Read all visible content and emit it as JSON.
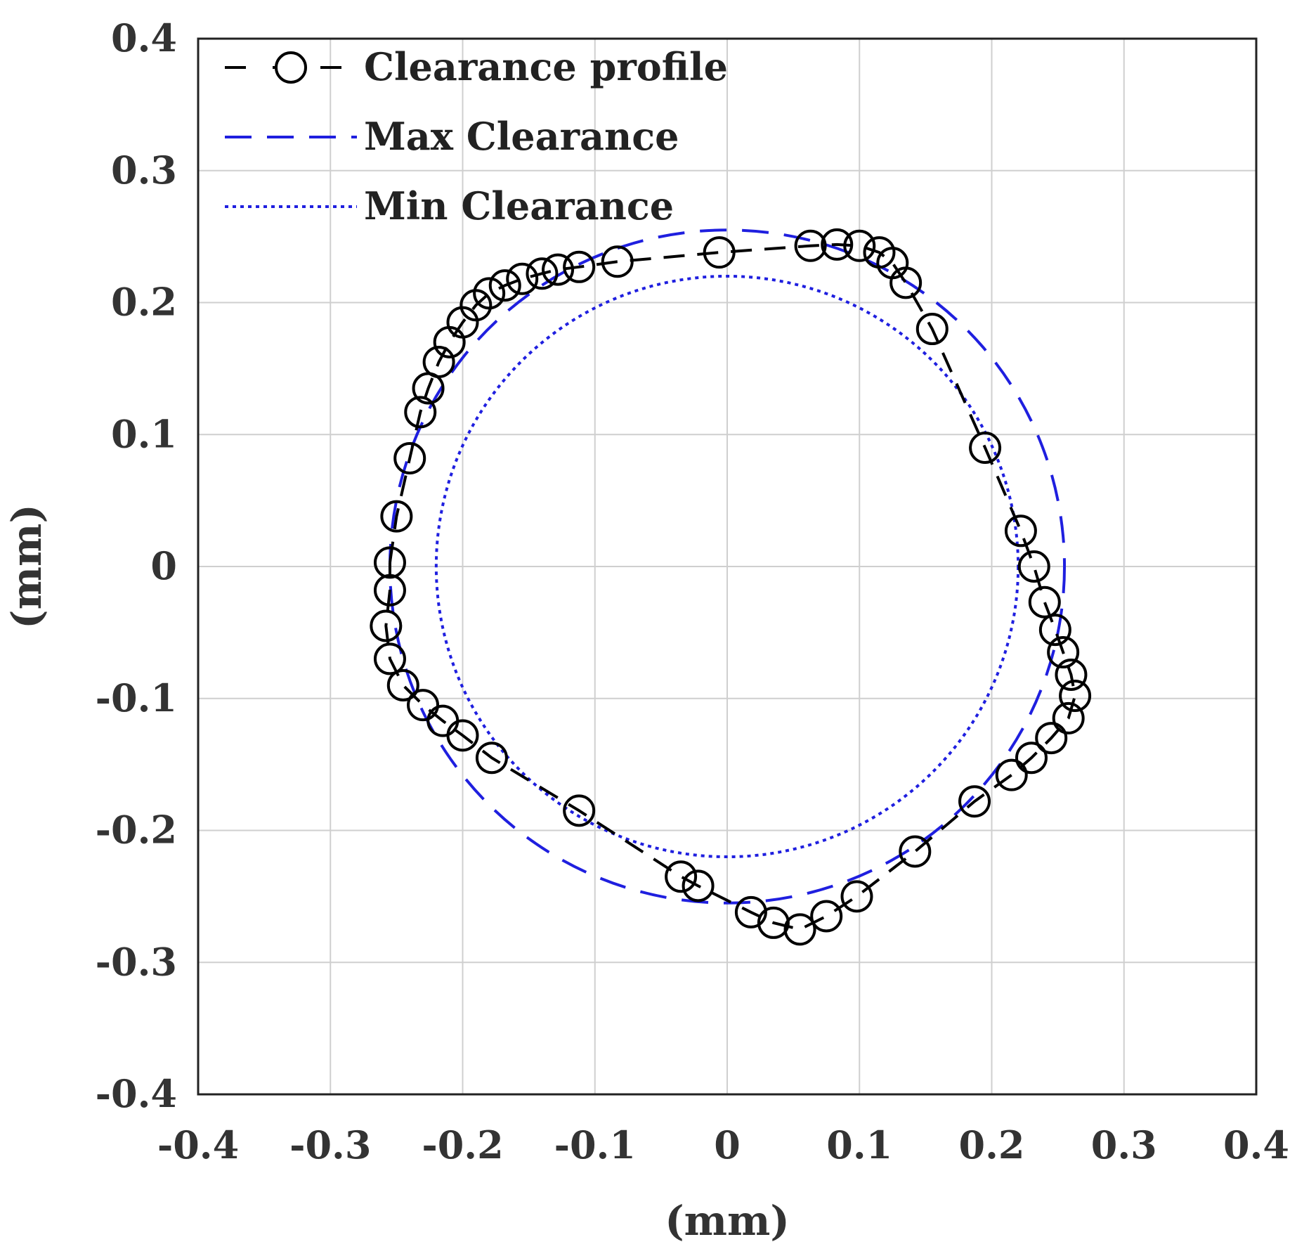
{
  "chart_data": {
    "type": "line",
    "title": "",
    "xlabel": "(mm)",
    "ylabel": "(mm)",
    "xlim": [
      -0.4,
      0.4
    ],
    "ylim": [
      -0.4,
      0.4
    ],
    "xticks": [
      "-0.4",
      "-0.3",
      "-0.2",
      "-0.1",
      "0",
      "0.1",
      "0.2",
      "0.3",
      "0.4"
    ],
    "yticks": [
      "-0.4",
      "-0.3",
      "-0.2",
      "-0.1",
      "0",
      "0.1",
      "0.2",
      "0.3",
      "0.4"
    ],
    "xtick_values": [
      -0.4,
      -0.3,
      -0.2,
      -0.1,
      0,
      0.1,
      0.2,
      0.3,
      0.4
    ],
    "ytick_values": [
      -0.4,
      -0.3,
      -0.2,
      -0.1,
      0,
      0.1,
      0.2,
      0.3,
      0.4
    ],
    "grid": true,
    "legend_position": "top-left",
    "series": [
      {
        "name": "Clearance profile",
        "style": "dashed-circle-markers",
        "color": "#000000",
        "points": [
          [
            -0.255,
            0.003
          ],
          [
            -0.25,
            0.038
          ],
          [
            -0.24,
            0.082
          ],
          [
            -0.232,
            0.117
          ],
          [
            -0.226,
            0.135
          ],
          [
            -0.218,
            0.155
          ],
          [
            -0.21,
            0.17
          ],
          [
            -0.2,
            0.185
          ],
          [
            -0.19,
            0.198
          ],
          [
            -0.18,
            0.207
          ],
          [
            -0.168,
            0.213
          ],
          [
            -0.155,
            0.218
          ],
          [
            -0.14,
            0.222
          ],
          [
            -0.128,
            0.225
          ],
          [
            -0.112,
            0.227
          ],
          [
            -0.083,
            0.231
          ],
          [
            -0.006,
            0.238
          ],
          [
            0.063,
            0.243
          ],
          [
            0.083,
            0.244
          ],
          [
            0.1,
            0.243
          ],
          [
            0.115,
            0.238
          ],
          [
            0.125,
            0.23
          ],
          [
            0.135,
            0.215
          ],
          [
            0.155,
            0.18
          ],
          [
            0.195,
            0.09
          ],
          [
            0.222,
            0.027
          ],
          [
            0.232,
            0.0
          ],
          [
            0.24,
            -0.027
          ],
          [
            0.248,
            -0.048
          ],
          [
            0.254,
            -0.065
          ],
          [
            0.26,
            -0.082
          ],
          [
            0.263,
            -0.098
          ],
          [
            0.258,
            -0.115
          ],
          [
            0.245,
            -0.13
          ],
          [
            0.23,
            -0.145
          ],
          [
            0.215,
            -0.158
          ],
          [
            0.187,
            -0.178
          ],
          [
            0.142,
            -0.216
          ],
          [
            0.098,
            -0.25
          ],
          [
            0.075,
            -0.265
          ],
          [
            0.055,
            -0.275
          ],
          [
            0.035,
            -0.27
          ],
          [
            0.018,
            -0.262
          ],
          [
            -0.022,
            -0.242
          ],
          [
            -0.035,
            -0.235
          ],
          [
            -0.112,
            -0.185
          ],
          [
            -0.178,
            -0.145
          ],
          [
            -0.2,
            -0.128
          ],
          [
            -0.215,
            -0.117
          ],
          [
            -0.23,
            -0.105
          ],
          [
            -0.245,
            -0.09
          ],
          [
            -0.255,
            -0.07
          ],
          [
            -0.258,
            -0.045
          ],
          [
            -0.255,
            -0.018
          ]
        ]
      },
      {
        "name": "Max Clearance",
        "style": "dashed",
        "color": "#1f1fdf",
        "center": [
          0.0,
          0.0
        ],
        "radius": 0.255
      },
      {
        "name": "Min Clearance",
        "style": "dotted",
        "color": "#1f1fdf",
        "center": [
          0.0,
          0.0
        ],
        "radius": 0.22
      }
    ]
  }
}
